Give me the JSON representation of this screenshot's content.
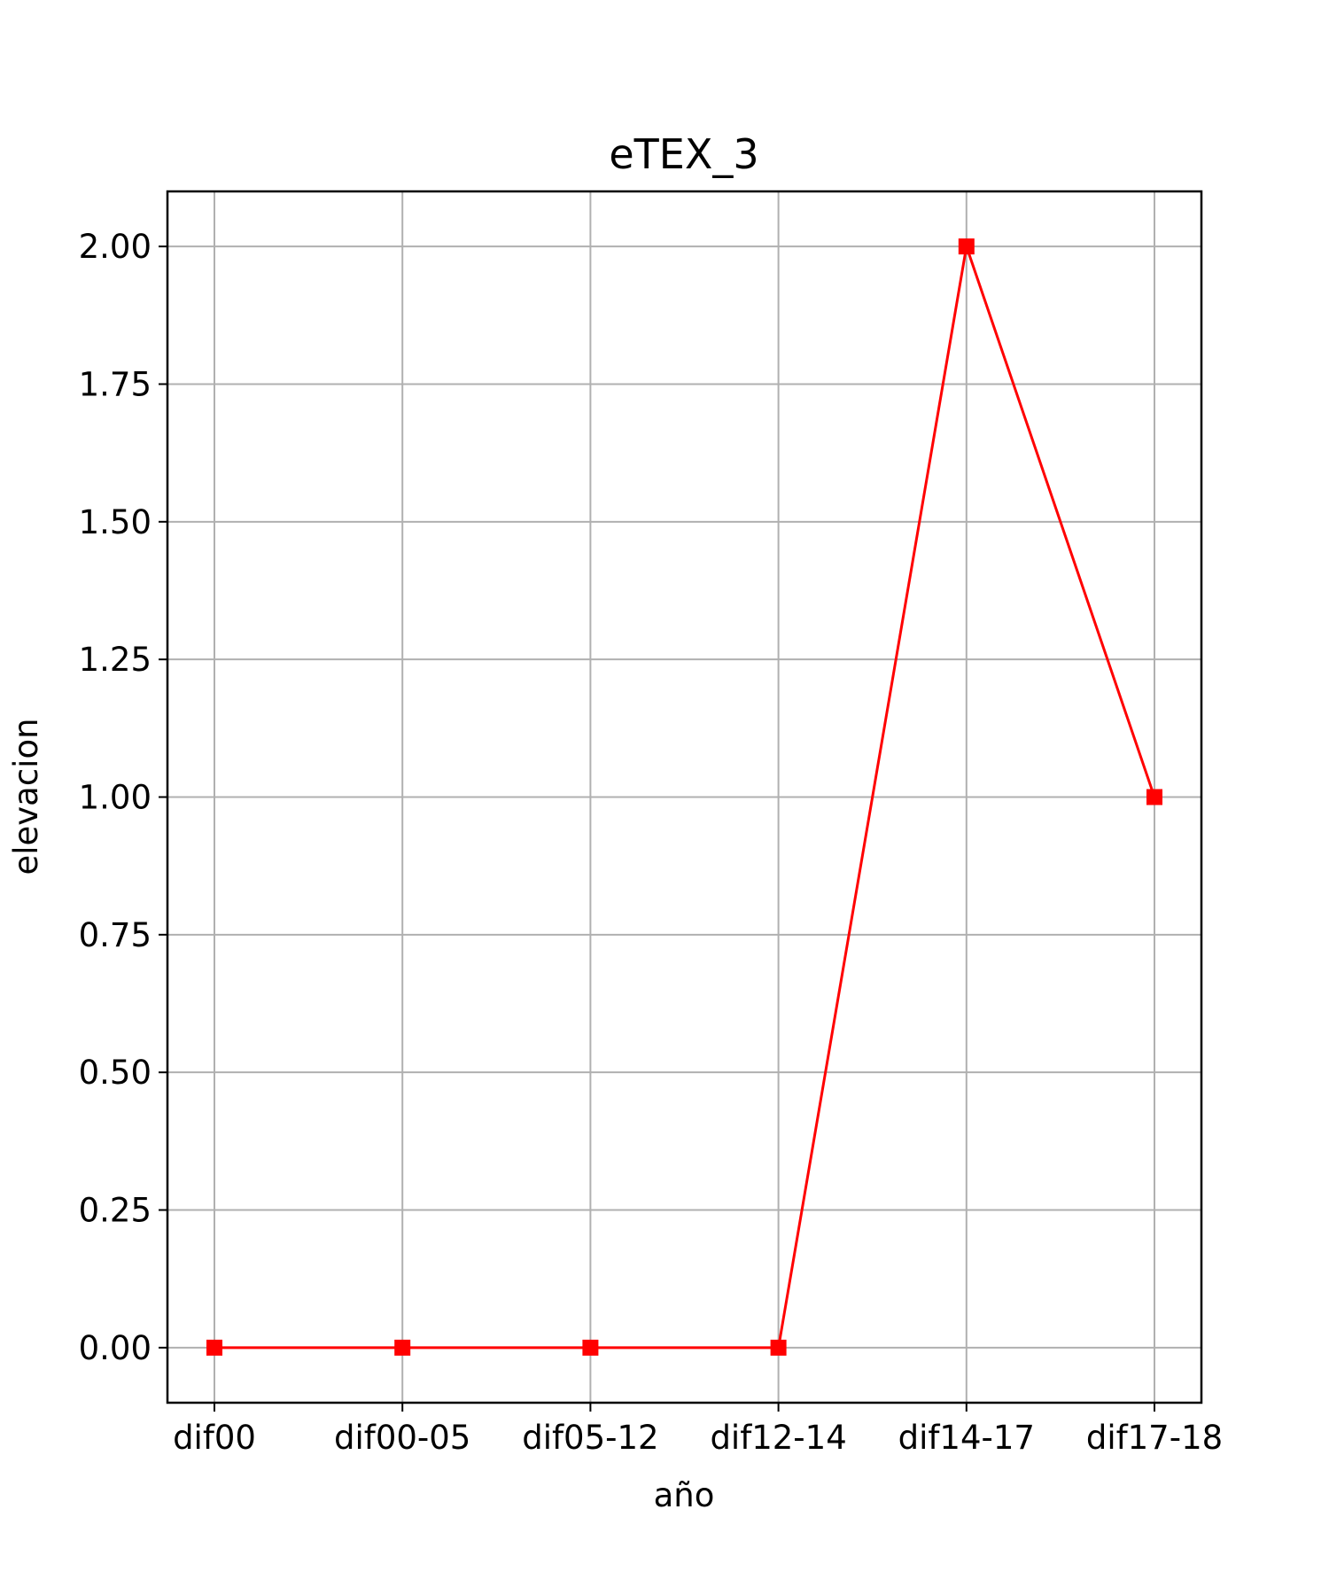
{
  "chart_data": {
    "type": "line",
    "title": "eTEX_3",
    "xlabel": "año",
    "ylabel": "elevacion",
    "categories": [
      "dif00",
      "dif00-05",
      "dif05-12",
      "dif12-14",
      "dif14-17",
      "dif17-18"
    ],
    "series": [
      {
        "values": [
          0,
          0,
          0,
          0,
          2,
          1
        ],
        "color": "#ff0000",
        "marker": "square"
      }
    ],
    "ylim": [
      -0.1,
      2.1
    ],
    "yticks": [
      0,
      0.25,
      0.5,
      0.75,
      1,
      1.25,
      1.5,
      1.75,
      2
    ],
    "ytick_labels": [
      "0.00",
      "0.25",
      "0.50",
      "0.75",
      "1.00",
      "1.25",
      "1.50",
      "1.75",
      "2.00"
    ],
    "grid": true,
    "grid_color": "#b0b0b0"
  }
}
